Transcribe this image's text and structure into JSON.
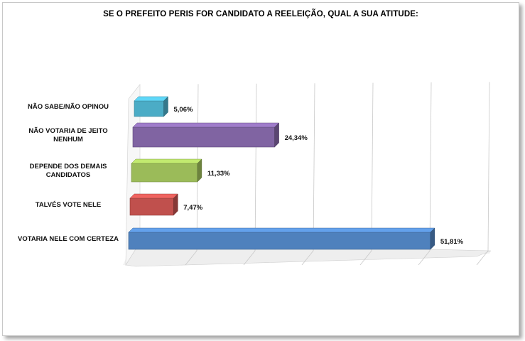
{
  "chart_data": {
    "type": "bar",
    "orientation": "horizontal",
    "title": "SE O PREFEITO PERIS FOR CANDIDATO A REELEIÇÃO, QUAL A SUA ATITUDE:",
    "categories": [
      "NÃO SABE/NÃO OPINOU",
      "NÃO VOTARIA DE JEITO NENHUM",
      "DEPENDE DOS DEMAIS CANDIDATOS",
      "TALVÉS VOTE NELE",
      "VOTARIA NELE COM CERTEZA"
    ],
    "category_lines": [
      [
        "NÃO SABE/NÃO OPINOU"
      ],
      [
        "NÃO VOTARIA DE JEITO",
        "NENHUM"
      ],
      [
        "DEPENDE DOS DEMAIS",
        "CANDIDATOS"
      ],
      [
        "TALVÉS VOTE NELE"
      ],
      [
        "VOTARIA NELE COM CERTEZA"
      ]
    ],
    "values": [
      5.06,
      24.34,
      11.33,
      7.47,
      51.81
    ],
    "value_labels": [
      "5,06%",
      "24,34%",
      "11,33%",
      "7,47%",
      "51,81%"
    ],
    "colors": [
      "#4bacc6",
      "#8064a2",
      "#9bbb59",
      "#c0504d",
      "#4f81bd"
    ],
    "xlim": [
      0,
      60
    ],
    "grid": true,
    "three_d": true,
    "legend": "none"
  }
}
